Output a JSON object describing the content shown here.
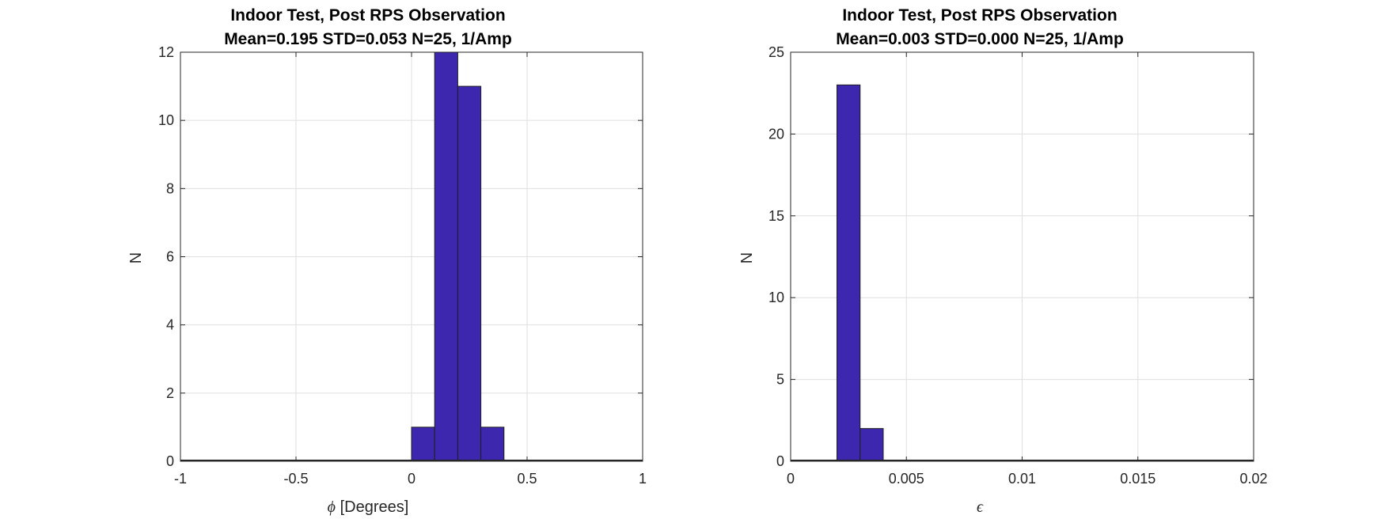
{
  "chart_data": [
    {
      "type": "bar",
      "title_line1": "Indoor Test, Post RPS Observation",
      "title_line2": "Mean=0.195 STD=0.053 N=25, 1/Amp",
      "xlabel_symbol": "ϕ",
      "xlabel_text": "[Degrees]",
      "ylabel": "N",
      "xlim": [
        -1,
        1
      ],
      "ylim": [
        0,
        12
      ],
      "xticks": [
        "-1",
        "-0.5",
        "0",
        "0.5",
        "1"
      ],
      "xtick_values": [
        -1,
        -0.5,
        0,
        0.5,
        1
      ],
      "yticks": [
        "0",
        "2",
        "4",
        "6",
        "8",
        "10",
        "12"
      ],
      "ytick_values": [
        0,
        2,
        4,
        6,
        8,
        10,
        12
      ],
      "grid": true,
      "bins": [
        {
          "x0": 0.0,
          "x1": 0.1,
          "count": 1
        },
        {
          "x0": 0.1,
          "x1": 0.2,
          "count": 12
        },
        {
          "x0": 0.2,
          "x1": 0.3,
          "count": 11
        },
        {
          "x0": 0.3,
          "x1": 0.4,
          "count": 1
        }
      ],
      "bar_color": "#3d27ae"
    },
    {
      "type": "bar",
      "title_line1": "Indoor Test, Post RPS Observation",
      "title_line2": "Mean=0.003 STD=0.000 N=25, 1/Amp",
      "xlabel_symbol": "ϵ",
      "xlabel_text": "",
      "ylabel": "N",
      "xlim": [
        0,
        0.02
      ],
      "ylim": [
        0,
        25
      ],
      "xticks": [
        "0",
        "0.005",
        "0.01",
        "0.015",
        "0.02"
      ],
      "xtick_values": [
        0,
        0.005,
        0.01,
        0.015,
        0.02
      ],
      "yticks": [
        "0",
        "5",
        "10",
        "15",
        "20",
        "25"
      ],
      "ytick_values": [
        0,
        5,
        10,
        15,
        20,
        25
      ],
      "grid": true,
      "bins": [
        {
          "x0": 0.002,
          "x1": 0.003,
          "count": 23
        },
        {
          "x0": 0.003,
          "x1": 0.004,
          "count": 2
        }
      ],
      "bar_color": "#3d27ae"
    }
  ]
}
